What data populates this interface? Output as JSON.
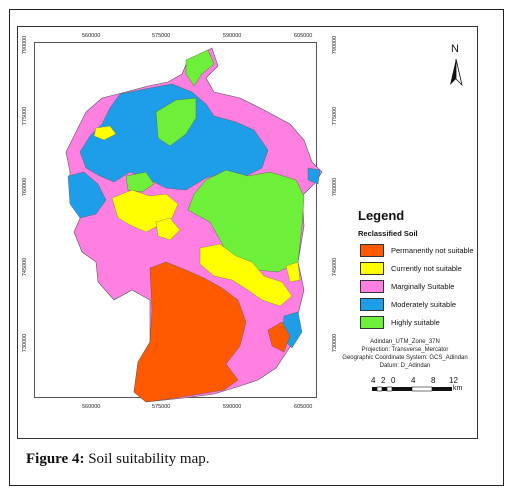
{
  "figure": {
    "caption_label": "Figure 4:",
    "caption_text": " Soil suitability map."
  },
  "map": {
    "x_ticks_top": [
      "560000",
      "575000",
      "590000",
      "605000"
    ],
    "x_ticks_bottom": [
      "560000",
      "575000",
      "590000",
      "605000"
    ],
    "y_ticks_left": [
      "790000",
      "775000",
      "760000",
      "745000",
      "730000"
    ],
    "y_ticks_right": [
      "790000",
      "775000",
      "760000",
      "745000",
      "730000"
    ],
    "north_label": "N"
  },
  "legend": {
    "title": "Legend",
    "subtitle": "Reclassified Soil",
    "items": [
      {
        "label": "Permanently not suitable",
        "color": "#ff5a00"
      },
      {
        "label": "Currently not suitable",
        "color": "#ffff00"
      },
      {
        "label": "Marginally Suitable",
        "color": "#ff80e0"
      },
      {
        "label": "Moderately suitable",
        "color": "#1e9ee8"
      },
      {
        "label": "Highly suitable",
        "color": "#6ef03a"
      }
    ]
  },
  "projection": {
    "line1": "Adindan_UTM_Zone_37N",
    "line2": "Projection: Transverse_Mercator",
    "line3": "Geographic Coordinate System: GCS_Adindan",
    "line4": "Datum: D_Adindan"
  },
  "scale_bar": {
    "labels": [
      "4",
      "2",
      "0",
      "4",
      "8",
      "12"
    ],
    "unit": "km"
  }
}
